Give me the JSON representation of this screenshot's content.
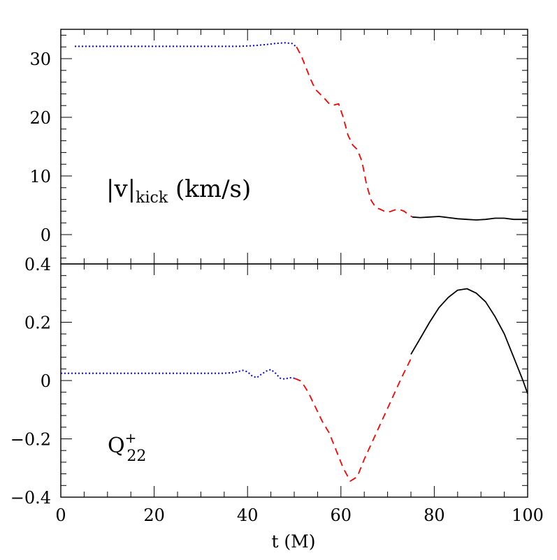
{
  "chart_data": [
    {
      "type": "line",
      "panel": "top",
      "annotation": {
        "main": "|v|",
        "sub": "kick",
        "tail": " (km/s)"
      },
      "xlim": [
        0,
        100
      ],
      "ylim": [
        -5,
        35
      ],
      "yticks": [
        0,
        10,
        20,
        30
      ],
      "ytick_labels": [
        "0",
        "10",
        "20",
        "30"
      ],
      "series": [
        {
          "style": "dotted",
          "color": "#0000ff",
          "x": [
            3,
            10,
            20,
            30,
            38,
            41,
            44,
            46,
            48,
            49.5,
            50.5
          ],
          "y": [
            32.1,
            32.1,
            32.1,
            32.1,
            32.1,
            32.2,
            32.4,
            32.6,
            32.7,
            32.6,
            32.0
          ]
        },
        {
          "style": "dashed",
          "color": "#ff0000",
          "x": [
            50.5,
            51.5,
            52.5,
            53.5,
            54.5,
            55.5,
            56.5,
            57.5,
            58.5,
            59.5,
            60.5,
            61.5,
            62.5,
            63.5,
            64.5,
            65.5,
            66.5,
            67.5,
            68.5,
            69.5,
            70.5,
            71.5,
            72.5,
            73.5,
            74.5,
            75.3
          ],
          "y": [
            32.0,
            30.5,
            28.5,
            26.5,
            24.8,
            24.0,
            23.2,
            22.3,
            22.1,
            22.3,
            20.0,
            17.0,
            15.3,
            14.5,
            12.5,
            8.5,
            5.8,
            4.6,
            4.3,
            3.9,
            3.9,
            4.2,
            4.3,
            4.0,
            3.4,
            3.0
          ]
        },
        {
          "style": "solid",
          "color": "#000000",
          "x": [
            75.3,
            77,
            79,
            81,
            83,
            85,
            87,
            89,
            91,
            93,
            95,
            97,
            100
          ],
          "y": [
            3.0,
            2.9,
            3.0,
            3.1,
            2.9,
            2.7,
            2.6,
            2.5,
            2.6,
            2.8,
            2.8,
            2.6,
            2.6
          ]
        }
      ]
    },
    {
      "type": "line",
      "panel": "bottom",
      "annotation": {
        "main": "Q",
        "sup": "+",
        "sub": "22"
      },
      "xlabel": "t  (M)",
      "xlim": [
        0,
        100
      ],
      "ylim": [
        -0.4,
        0.4
      ],
      "xticks": [
        0,
        20,
        40,
        60,
        80,
        100
      ],
      "xtick_labels": [
        "0",
        "20",
        "40",
        "60",
        "80",
        "100"
      ],
      "yticks": [
        -0.4,
        -0.2,
        0,
        0.2,
        0.4
      ],
      "ytick_labels": [
        "−0.4",
        "−0.2",
        "0",
        "0.2",
        "0.4"
      ],
      "series": [
        {
          "style": "dotted",
          "color": "#0000ff",
          "x": [
            0,
            10,
            20,
            30,
            35,
            37,
            39,
            40,
            41,
            42,
            43,
            44,
            45,
            46,
            47,
            48,
            49,
            50
          ],
          "y": [
            0.025,
            0.025,
            0.025,
            0.025,
            0.025,
            0.027,
            0.035,
            0.03,
            0.015,
            0.01,
            0.022,
            0.032,
            0.038,
            0.025,
            0.008,
            0.005,
            0.01,
            0.008
          ]
        },
        {
          "style": "dashed",
          "color": "#ff0000",
          "x": [
            50,
            51.5,
            53,
            54.5,
            56,
            57.5,
            59,
            60.5,
            62,
            63.5,
            65,
            67,
            69,
            71,
            73,
            75
          ],
          "y": [
            0.008,
            -0.002,
            -0.04,
            -0.09,
            -0.14,
            -0.18,
            -0.24,
            -0.3,
            -0.345,
            -0.33,
            -0.27,
            -0.2,
            -0.13,
            -0.06,
            0.01,
            0.075
          ]
        },
        {
          "style": "solid",
          "color": "#000000",
          "x": [
            75,
            77,
            79,
            81,
            83,
            85,
            87,
            89,
            91,
            93,
            95,
            97,
            99,
            100
          ],
          "y": [
            0.09,
            0.145,
            0.2,
            0.25,
            0.285,
            0.31,
            0.315,
            0.3,
            0.27,
            0.22,
            0.16,
            0.08,
            0.0,
            -0.045
          ]
        }
      ]
    }
  ]
}
